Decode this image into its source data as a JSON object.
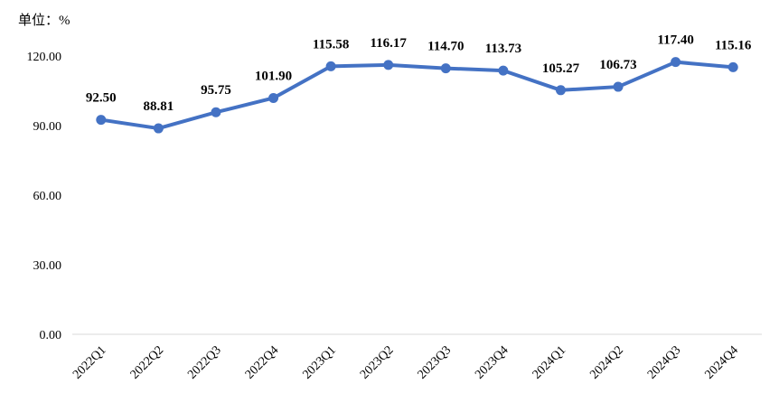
{
  "chart_data": {
    "type": "line",
    "unit_label": "单位：%",
    "categories": [
      "2022Q1",
      "2022Q2",
      "2022Q3",
      "2022Q4",
      "2023Q1",
      "2023Q2",
      "2023Q3",
      "2023Q4",
      "2024Q1",
      "2024Q2",
      "2024Q3",
      "2024Q4"
    ],
    "series": [
      {
        "values": [
          92.5,
          88.81,
          95.75,
          101.9,
          115.58,
          116.17,
          114.7,
          113.73,
          105.27,
          106.73,
          117.4,
          115.16
        ],
        "labels": [
          "92.50",
          "88.81",
          "95.75",
          "101.90",
          "115.58",
          "116.17",
          "114.70",
          "113.73",
          "105.27",
          "106.73",
          "117.40",
          "115.16"
        ],
        "color": "#4472C4"
      }
    ],
    "ylim": [
      0,
      120
    ],
    "yticks": [
      "0.00",
      "30.00",
      "60.00",
      "90.00",
      "120.00"
    ],
    "grid": false,
    "legend": "none"
  }
}
